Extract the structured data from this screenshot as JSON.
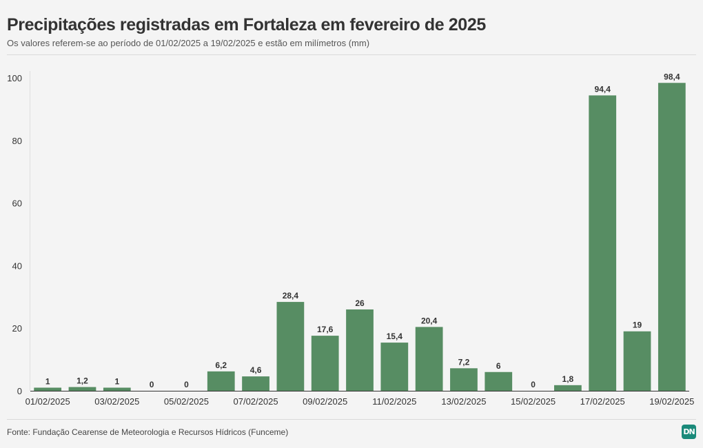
{
  "header": {
    "title": "Precipitações registradas em Fortaleza em fevereiro de 2025",
    "subtitle": "Os valores referem-se ao período de 01/02/2025 a 19/02/2025 e estão em milímetros (mm)"
  },
  "footer": {
    "source": "Fonte: Fundação Cearense de Meteorologia e Recursos Hídricos (Funceme)",
    "logo_text": "DN"
  },
  "colors": {
    "bar": "#578d63",
    "background": "#f4f4f4",
    "text": "#333333",
    "logo": "#1a8a7a"
  },
  "chart_data": {
    "type": "bar",
    "categories": [
      "01/02/2025",
      "02/02/2025",
      "03/02/2025",
      "04/02/2025",
      "05/02/2025",
      "06/02/2025",
      "07/02/2025",
      "08/02/2025",
      "09/02/2025",
      "10/02/2025",
      "11/02/2025",
      "12/02/2025",
      "13/02/2025",
      "14/02/2025",
      "15/02/2025",
      "16/02/2025",
      "17/02/2025",
      "18/02/2025",
      "19/02/2025"
    ],
    "values": [
      1,
      1.2,
      1,
      0,
      0,
      6.2,
      4.6,
      28.4,
      17.6,
      26,
      15.4,
      20.4,
      7.2,
      6,
      0,
      1.8,
      94.4,
      19,
      98.4
    ],
    "data_labels": [
      "1",
      "1,2",
      "1",
      "0",
      "0",
      "6,2",
      "4,6",
      "28,4",
      "17,6",
      "26",
      "15,4",
      "20,4",
      "7,2",
      "6",
      "0",
      "1,8",
      "94,4",
      "19",
      "98,4"
    ],
    "x_tick_labels_shown": [
      "01/02/2025",
      "03/02/2025",
      "05/02/2025",
      "07/02/2025",
      "09/02/2025",
      "11/02/2025",
      "13/02/2025",
      "15/02/2025",
      "17/02/2025",
      "19/02/2025"
    ],
    "y_ticks": [
      "0",
      "20",
      "40",
      "60",
      "80",
      "100"
    ],
    "ylim": [
      0,
      100
    ],
    "grid": false,
    "xlabel": "",
    "ylabel": ""
  }
}
